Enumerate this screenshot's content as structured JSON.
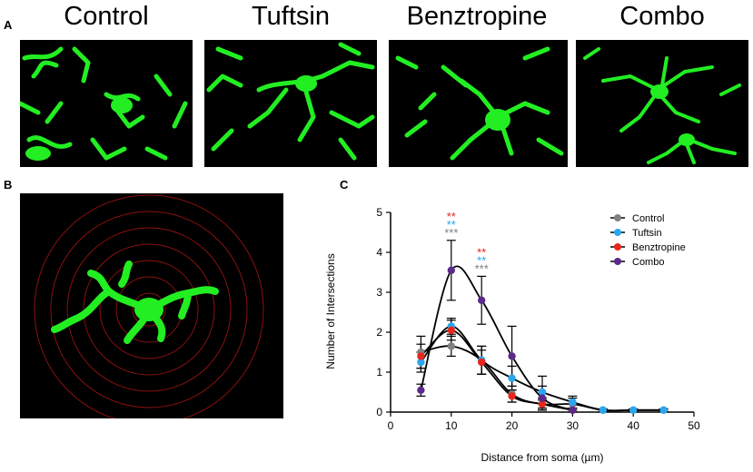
{
  "panel_labels": {
    "a": "A",
    "b": "B",
    "c": "C"
  },
  "conditions": [
    "Control",
    "Tuftsin",
    "Benztropine",
    "Combo"
  ],
  "colors": {
    "microglia": "#22ee22",
    "rings": "#8a1010",
    "control": "#808080",
    "tuftsin": "#2aa6ee",
    "benztropine": "#e8261b",
    "combo": "#5b2a8c"
  },
  "chart_data": {
    "type": "line",
    "xlabel": "Distance from soma (µm)",
    "ylabel": "Number of Intersections",
    "xlim": [
      0,
      50
    ],
    "ylim": [
      0,
      5
    ],
    "xticks": [
      "0",
      "10",
      "20",
      "30",
      "40",
      "50"
    ],
    "yticks": [
      "0",
      "1",
      "2",
      "3",
      "4",
      "5"
    ],
    "legend_position": "top-right",
    "series": [
      {
        "name": "Control",
        "color": "#808080",
        "x": [
          5,
          10,
          15,
          20,
          25,
          30,
          35,
          40,
          45
        ],
        "y": [
          1.5,
          1.65,
          1.3,
          0.45,
          0.2,
          0.2,
          0.05,
          0.05,
          0.05
        ],
        "err": [
          0.4,
          0.25,
          0.35,
          0.2,
          0.15,
          0.15,
          0.03,
          0.03,
          0.03
        ]
      },
      {
        "name": "Tuftsin",
        "color": "#2aa6ee",
        "x": [
          5,
          10,
          15,
          20,
          25,
          30,
          35,
          40,
          45
        ],
        "y": [
          1.25,
          2.15,
          1.3,
          0.85,
          0.5,
          0.25,
          0.05,
          0.05,
          0.05
        ],
        "err": [
          0.25,
          0.2,
          0.35,
          0.3,
          0.4,
          0.15,
          0.03,
          0.03,
          0.03
        ]
      },
      {
        "name": "Benztropine",
        "color": "#e8261b",
        "x": [
          5,
          10,
          15,
          20,
          25,
          30
        ],
        "y": [
          1.4,
          2.05,
          1.25,
          0.4,
          0.2,
          0.05
        ],
        "err": [
          0.3,
          0.25,
          0.3,
          0.15,
          0.1,
          0.05
        ]
      },
      {
        "name": "Combo",
        "color": "#5b2a8c",
        "x": [
          5,
          10,
          15,
          20,
          25,
          30
        ],
        "y": [
          0.55,
          3.55,
          2.8,
          1.4,
          0.35,
          0.05
        ],
        "err": [
          0.15,
          0.75,
          0.6,
          0.75,
          0.3,
          0.05
        ]
      }
    ],
    "annotations": [
      {
        "x": 10,
        "lines": [
          {
            "text": "**",
            "color": "#e8261b"
          },
          {
            "text": "**",
            "color": "#2aa6ee"
          },
          {
            "text": "***",
            "color": "#808080"
          }
        ]
      },
      {
        "x": 15,
        "lines": [
          {
            "text": "**",
            "color": "#e8261b"
          },
          {
            "text": "**",
            "color": "#2aa6ee"
          },
          {
            "text": "***",
            "color": "#808080"
          }
        ]
      }
    ]
  }
}
